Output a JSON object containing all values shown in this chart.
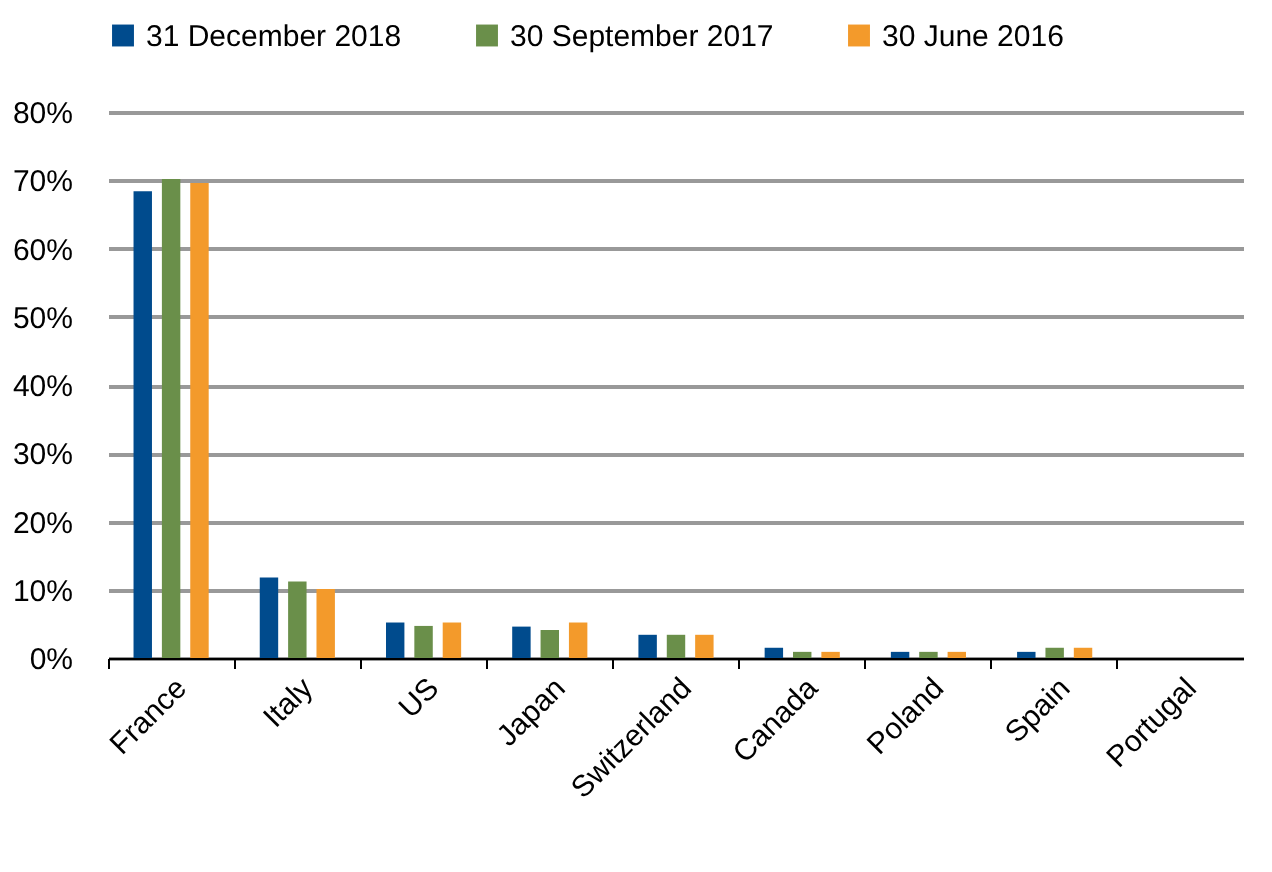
{
  "chart_data": {
    "type": "bar",
    "categories": [
      "France",
      "Italy",
      "US",
      "Japan",
      "Switzerland",
      "Canada",
      "Poland",
      "Spain",
      "Portugal"
    ],
    "series": [
      {
        "name": "31 December 2018",
        "color": "#004b8d",
        "values": [
          68.4,
          11.8,
          5.2,
          4.6,
          3.4,
          1.5,
          0.9,
          0.9,
          null
        ]
      },
      {
        "name": "30 September 2017",
        "color": "#6a8f4a",
        "values": [
          70.2,
          11.2,
          4.7,
          4.1,
          3.4,
          0.9,
          0.9,
          1.5,
          null
        ]
      },
      {
        "name": "30 June 2016",
        "color": "#f39a2b",
        "values": [
          69.6,
          10.1,
          5.2,
          5.2,
          3.4,
          0.9,
          0.9,
          1.5,
          null
        ]
      }
    ],
    "ylim": [
      0,
      80
    ],
    "yticks": [
      {
        "value": 0,
        "label": "0%"
      },
      {
        "value": 10,
        "label": "10%"
      },
      {
        "value": 20,
        "label": "20%"
      },
      {
        "value": 30,
        "label": "30%"
      },
      {
        "value": 40,
        "label": "40%"
      },
      {
        "value": 50,
        "label": "50%"
      },
      {
        "value": 60,
        "label": "60%"
      },
      {
        "value": 70,
        "label": "70%"
      },
      {
        "value": 80,
        "label": "80%"
      }
    ],
    "grid": "y",
    "legend": "top"
  }
}
